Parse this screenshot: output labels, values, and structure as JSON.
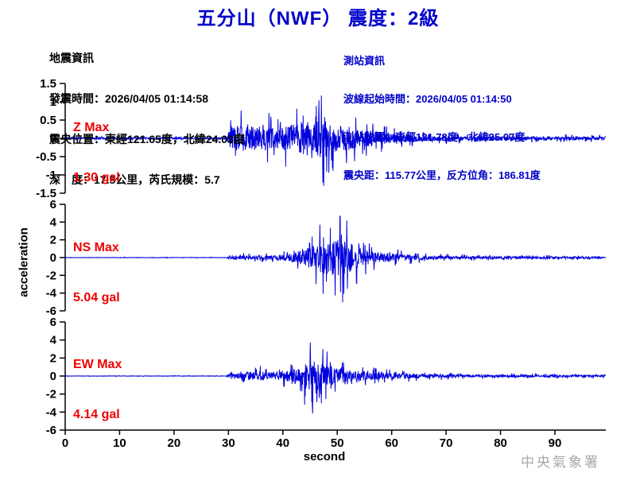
{
  "header": {
    "title": "五分山（NWF） 震度：2級"
  },
  "eq_info": {
    "heading": "地震資訊",
    "origin_time": "發震時間：2026/04/05 01:14:58",
    "epicenter": "震央位置：東經121.65度，北緯24.03度",
    "depth_magnitude": "深　度：17.5公里，芮氏規模：5.7"
  },
  "station_info": {
    "heading": "測站資訊",
    "wave_start_time": "波線起始時間：2026/04/05 01:14:50",
    "station_location": "測站位置：東經121.78度，北緯25.07度",
    "distance_azimuth": "震央距：115.77公里，反方位角：186.81度"
  },
  "footer": {
    "watermark": "中央氣象署"
  },
  "colors": {
    "title_blue": "#0000cc",
    "info_blue": "#0000cc",
    "trace_blue": "#0000dd",
    "max_red": "#ee0000",
    "axis_black": "#000000",
    "watermark_gray": "#a8a8a8"
  },
  "chart_data": {
    "type": "line",
    "title": "五分山（NWF） 震度：2級",
    "xlabel": "second",
    "ylabel": "acceleration",
    "x_range": [
      0,
      99.3
    ],
    "xticks": [
      0,
      10,
      20,
      30,
      40,
      50,
      60,
      70,
      80,
      90
    ],
    "grid": false,
    "legend": "none",
    "line_color": "#0000dd",
    "series": [
      {
        "name": "Z",
        "max_label": "Z Max",
        "max_value_text": "1.30 gal",
        "peak_gal": 1.3,
        "peak_t": 47.5,
        "p_arrival_t": 30,
        "ylim": [
          -1.5,
          1.5
        ],
        "yticks": [
          "1.5",
          "1",
          "0.5",
          "0",
          "-0.5",
          "-1",
          "-1.5"
        ],
        "envelope": [
          [
            0,
            0.05
          ],
          [
            29.5,
            0.06
          ],
          [
            30.2,
            0.55
          ],
          [
            31,
            0.8
          ],
          [
            33,
            0.85
          ],
          [
            35,
            0.75
          ],
          [
            37,
            0.8
          ],
          [
            39,
            0.72
          ],
          [
            41,
            0.9
          ],
          [
            43,
            1.05
          ],
          [
            44,
            1.15
          ],
          [
            46,
            1.05
          ],
          [
            47.5,
            1.3
          ],
          [
            48.5,
            1.1
          ],
          [
            50,
            0.85
          ],
          [
            52,
            0.8
          ],
          [
            54,
            0.6
          ],
          [
            56,
            0.5
          ],
          [
            58,
            0.38
          ],
          [
            60,
            0.3
          ],
          [
            63,
            0.22
          ],
          [
            67,
            0.18
          ],
          [
            72,
            0.15
          ],
          [
            80,
            0.12
          ],
          [
            90,
            0.11
          ],
          [
            99.3,
            0.1
          ]
        ]
      },
      {
        "name": "NS",
        "max_label": "NS Max",
        "max_value_text": "5.04 gal",
        "peak_gal": 5.04,
        "peak_t": 51.0,
        "p_arrival_t": 30,
        "ylim": [
          -6,
          6
        ],
        "yticks": [
          "6",
          "4",
          "2",
          "0",
          "-2",
          "-4",
          "-6"
        ],
        "envelope": [
          [
            0,
            0.04
          ],
          [
            29.5,
            0.05
          ],
          [
            30.2,
            0.45
          ],
          [
            34,
            0.5
          ],
          [
            38,
            0.6
          ],
          [
            40,
            0.8
          ],
          [
            42,
            1.2
          ],
          [
            43,
            1.7
          ],
          [
            44,
            2.2
          ],
          [
            45,
            2.9
          ],
          [
            46,
            3.6
          ],
          [
            47,
            4.3
          ],
          [
            48,
            4.5
          ],
          [
            49,
            4.1
          ],
          [
            50,
            4.7
          ],
          [
            51,
            5.0
          ],
          [
            52,
            4.2
          ],
          [
            53,
            3.3
          ],
          [
            54,
            2.7
          ],
          [
            55,
            2.2
          ],
          [
            56,
            1.8
          ],
          [
            58,
            1.4
          ],
          [
            60,
            1.1
          ],
          [
            62,
            0.9
          ],
          [
            64,
            0.7
          ],
          [
            66,
            0.55
          ],
          [
            68,
            0.48
          ],
          [
            72,
            0.38
          ],
          [
            78,
            0.32
          ],
          [
            85,
            0.28
          ],
          [
            99.3,
            0.25
          ]
        ]
      },
      {
        "name": "EW",
        "max_label": "EW Max",
        "max_value_text": "4.14 gal",
        "peak_gal": 4.14,
        "peak_t": 45.5,
        "p_arrival_t": 30,
        "ylim": [
          -6,
          6
        ],
        "yticks": [
          "6",
          "4",
          "2",
          "0",
          "-2",
          "-4",
          "-6"
        ],
        "envelope": [
          [
            0,
            0.04
          ],
          [
            29.5,
            0.05
          ],
          [
            30.2,
            0.5
          ],
          [
            32,
            0.6
          ],
          [
            33,
            0.9
          ],
          [
            34,
            1.2
          ],
          [
            35,
            1.0
          ],
          [
            36,
            1.3
          ],
          [
            37,
            0.9
          ],
          [
            38,
            0.95
          ],
          [
            40,
            1.1
          ],
          [
            41,
            1.5
          ],
          [
            42,
            2.0
          ],
          [
            43,
            2.6
          ],
          [
            44,
            3.2
          ],
          [
            45,
            3.9
          ],
          [
            45.5,
            4.1
          ],
          [
            46,
            3.9
          ],
          [
            47,
            3.4
          ],
          [
            48,
            2.8
          ],
          [
            49,
            2.3
          ],
          [
            50,
            2.0
          ],
          [
            52,
            1.6
          ],
          [
            54,
            1.3
          ],
          [
            56,
            1.1
          ],
          [
            58,
            0.95
          ],
          [
            60,
            0.8
          ],
          [
            63,
            0.65
          ],
          [
            66,
            0.5
          ],
          [
            70,
            0.42
          ],
          [
            75,
            0.34
          ],
          [
            85,
            0.28
          ],
          [
            99.3,
            0.25
          ]
        ]
      }
    ]
  }
}
